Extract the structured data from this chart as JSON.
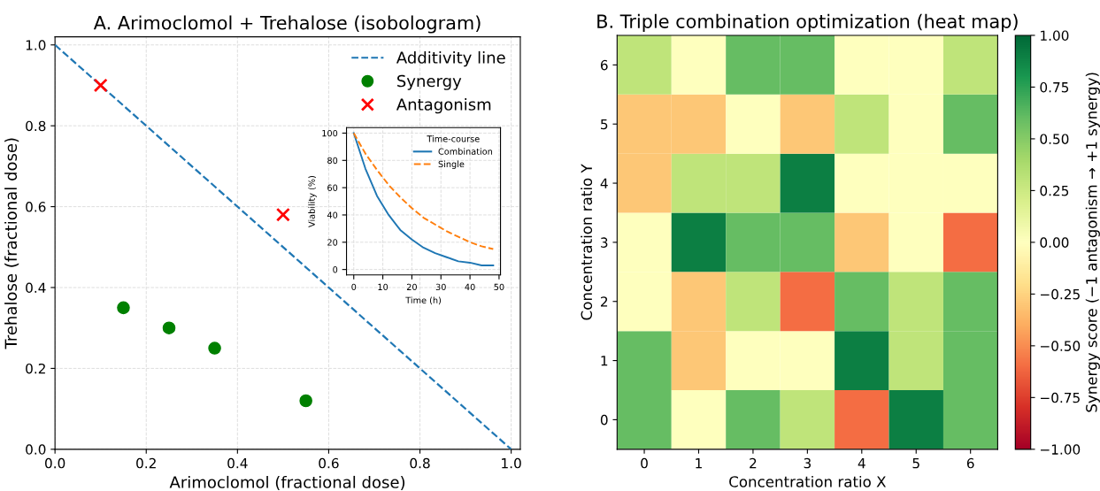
{
  "chart_data": [
    {
      "type": "scatter",
      "title": "A. Arimoclomol + Trehalose (isobologram)",
      "xlabel": "Arimoclomol (fractional dose)",
      "ylabel": "Trehalose (fractional dose)",
      "xlim": [
        0,
        1.02
      ],
      "ylim": [
        0,
        1.02
      ],
      "xticks": [
        {
          "value": 0,
          "label": "0.0"
        },
        0.2,
        0.4,
        0.6,
        0.8,
        {
          "value": 1,
          "label": "1.0"
        }
      ],
      "yticks": [
        {
          "value": 0,
          "label": "0.0"
        },
        0.2,
        0.4,
        0.6,
        0.8,
        {
          "value": 1,
          "label": "1.0"
        }
      ],
      "grid": true,
      "legend": "top right",
      "series": [
        {
          "name": "Additivity line",
          "type": "line",
          "color": "#1f77b4",
          "line_style": "dashed",
          "x": [
            0,
            1
          ],
          "values": [
            1,
            0
          ]
        },
        {
          "name": "Synergy",
          "type": "scatter",
          "color": "#008000",
          "marker": "circle",
          "x": [
            0.15,
            0.25,
            0.35,
            0.55
          ],
          "values": [
            0.35,
            0.3,
            0.25,
            0.12
          ]
        },
        {
          "name": "Antagonism",
          "type": "scatter",
          "color": "#ff0000",
          "marker": "cross",
          "x": [
            0.1,
            0.5
          ],
          "values": [
            0.9,
            0.58
          ]
        }
      ]
    },
    {
      "type": "line",
      "title": "Time-course",
      "xlabel": "Time (h)",
      "ylabel": "Viability (%)",
      "xlim": [
        -2.5,
        50.5
      ],
      "ylim": [
        -4,
        104
      ],
      "xticks": [
        0,
        10,
        20,
        30,
        40,
        50
      ],
      "yticks": [
        0,
        20,
        40,
        60,
        80,
        100
      ],
      "grid": true,
      "legend": "top right",
      "x": [
        0,
        4,
        8,
        12,
        16,
        20,
        24,
        28,
        32,
        36,
        40,
        44,
        48
      ],
      "series": [
        {
          "name": "Combination",
          "color": "#1f77b4",
          "line_style": "solid",
          "values": [
            100,
            74,
            54,
            40,
            29,
            22,
            16,
            12,
            9,
            6,
            5,
            3,
            3
          ]
        },
        {
          "name": "Single",
          "color": "#ff7f0e",
          "line_style": "dashed",
          "values": [
            100,
            85,
            73,
            62,
            53,
            45,
            38,
            33,
            28,
            24,
            20,
            17,
            15
          ]
        }
      ]
    },
    {
      "type": "heatmap",
      "title": "B. Triple combination optimization (heat map)",
      "xlabel": "Concentration ratio X",
      "ylabel": "Concentration ratio Y",
      "clabel": "Synergy score (−1 antagonism → +1 synergy)",
      "categories": [
        "0",
        "1",
        "2",
        "3",
        "4",
        "5",
        "6"
      ],
      "y_categories": [
        "6",
        "5",
        "4",
        "3",
        "2",
        "1",
        "0"
      ],
      "cells": [
        [
          0.3,
          0,
          0.6,
          0.6,
          0,
          0,
          0.3
        ],
        [
          -0.3,
          -0.3,
          0,
          -0.3,
          0.3,
          0,
          0.6
        ],
        [
          -0.3,
          0.3,
          0.3,
          0.9,
          0,
          0,
          0
        ],
        [
          0,
          0.9,
          0.6,
          0.6,
          -0.3,
          0,
          -0.6
        ],
        [
          0,
          -0.3,
          0.3,
          -0.6,
          0.6,
          0.3,
          0.6
        ],
        [
          0.6,
          -0.3,
          0,
          0,
          0.9,
          0.3,
          0.6
        ],
        [
          0.6,
          0,
          0.6,
          0.3,
          -0.6,
          0.9,
          0.6
        ]
      ],
      "clim": [
        -1,
        1
      ],
      "cticks": [
        {
          "value": -1,
          "label": "−1.00"
        },
        {
          "value": -0.75,
          "label": "−0.75"
        },
        {
          "value": -0.5,
          "label": "−0.50"
        },
        {
          "value": -0.25,
          "label": "−0.25"
        },
        {
          "value": 0,
          "label": "0.00"
        },
        {
          "value": 0.25,
          "label": "0.25"
        },
        {
          "value": 0.5,
          "label": "0.50"
        },
        {
          "value": 0.75,
          "label": "0.75"
        },
        {
          "value": 1,
          "label": "1.00"
        }
      ]
    }
  ]
}
